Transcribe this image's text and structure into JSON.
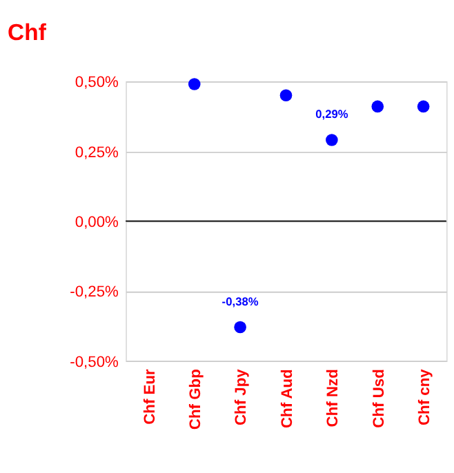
{
  "chart_data": {
    "type": "scatter",
    "title": "Chf",
    "categories": [
      "Chf Eur",
      "Chf Gbp",
      "Chf Jpy",
      "Chf Aud",
      "Chf Nzd",
      "Chf Usd",
      "Chf cny"
    ],
    "series": [
      {
        "color": "#0000ff",
        "values": [
          null,
          0.49,
          -0.38,
          0.45,
          0.29,
          0.41,
          0.41
        ],
        "value_labels": [
          null,
          null,
          "-0,38%",
          null,
          "0,29%",
          null,
          null
        ]
      }
    ],
    "ylim": [
      -0.5,
      0.5
    ],
    "yticks": [
      {
        "value": 0.5,
        "label": "0,50%"
      },
      {
        "value": 0.25,
        "label": "0,25%"
      },
      {
        "value": 0,
        "label": "0,00%"
      },
      {
        "value": -0.25,
        "label": "-0,25%"
      },
      {
        "value": -0.5,
        "label": "-0,50%"
      }
    ],
    "ref_lines": [
      {
        "axis": "y",
        "value": 0,
        "color": "#000000"
      }
    ],
    "grid": "y",
    "marker": "circle"
  }
}
